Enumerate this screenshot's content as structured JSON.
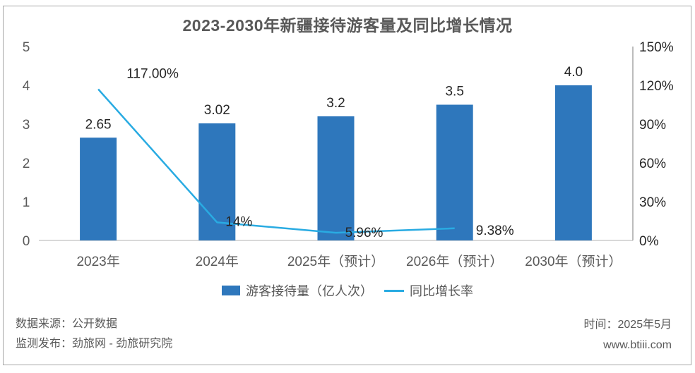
{
  "chart_data": {
    "type": "bar",
    "title": "2023-2030年新疆接待游客量及同比增长情况",
    "categories": [
      "2023年",
      "2024年",
      "2025年（预计）",
      "2026年（预计）",
      "2030年（预计）"
    ],
    "series": [
      {
        "name": "游客接待量（亿人次）",
        "type": "bar",
        "axis": "left",
        "values": [
          2.65,
          3.02,
          3.2,
          3.5,
          4.0
        ],
        "labels": [
          "2.65",
          "3.02",
          "3.2",
          "3.5",
          "4.0"
        ],
        "color": "#2E77BC"
      },
      {
        "name": "同比增长率",
        "type": "line",
        "axis": "right",
        "values": [
          117.0,
          14.0,
          5.96,
          9.38,
          null
        ],
        "labels": [
          "117.00%",
          "14%",
          "5.96%",
          "9.38%",
          ""
        ],
        "color": "#29ABE2"
      }
    ],
    "left_axis": {
      "min": 0,
      "max": 5,
      "tick_values": [
        0,
        1,
        2,
        3,
        4,
        5
      ],
      "tick_labels": [
        "0",
        "1",
        "2",
        "3",
        "4",
        "5"
      ]
    },
    "right_axis": {
      "min": 0,
      "max": 150,
      "tick_values": [
        0,
        30,
        60,
        90,
        120,
        150
      ],
      "tick_labels": [
        "0%",
        "30%",
        "60%",
        "90%",
        "120%",
        "150%"
      ]
    },
    "grid": false,
    "legend_position": "bottom"
  },
  "colors": {
    "frame_border": "#A6A6A6",
    "baseline": "#D9D9D9",
    "right_axis_line": "#A6A6A6",
    "gray_text": "#595959",
    "dark_text": "#262626"
  },
  "footer": {
    "source_line": "数据来源：公开数据",
    "publisher_line": "监测发布：劲旅网 - 劲旅研究院",
    "time_line": "时间：2025年5月",
    "website": "www.btiii.com"
  }
}
